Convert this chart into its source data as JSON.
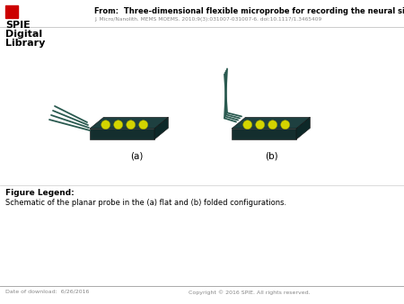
{
  "title_from": "From:  Three-dimensional flexible microprobe for recording the neural signal",
  "subtitle": "J. Micro/Nanolith. MEMS MOEMS. 2010;9(3):031007-031007-6. doi:10.1117/1.3465409",
  "spie_line1": "SPIE",
  "spie_line2": "Digital",
  "spie_line3": "Library",
  "label_a": "(a)",
  "label_b": "(b)",
  "figure_legend_title": "Figure Legend:",
  "figure_legend_text": "Schematic of the planar probe in the (a) flat and (b) folded configurations.",
  "footer_left": "Date of download:  6/26/2016",
  "footer_right": "Copyright © 2016 SPIE. All rights reserved.",
  "bg_color": "#ffffff",
  "text_color": "#000000",
  "gray_color": "#888888",
  "dark_teal": "#1e4040",
  "teal_side": "#0d2828",
  "teal_bottom": "#142e2e",
  "yellow_dot": "#d4d400",
  "header_line_color": "#cccccc",
  "footer_line_color": "#aaaaaa",
  "spie_red": "#cc0000",
  "needle_color": "#2a5a50"
}
